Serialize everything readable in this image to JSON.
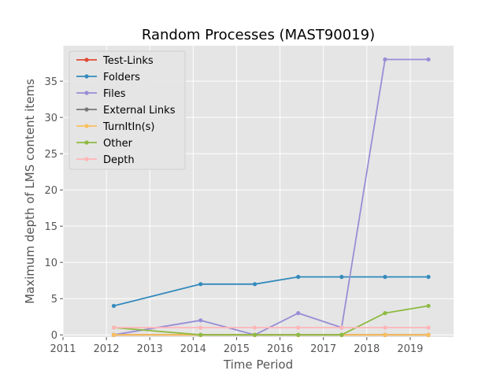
{
  "chart_data": {
    "type": "line",
    "title": "Random Processes (MAST90019)",
    "xlabel": "Time Period",
    "ylabel": "Maximum depth of LMS content items",
    "xlim": [
      2011.0,
      2020.0
    ],
    "ylim": [
      -0.3,
      39.9
    ],
    "x_ticks": [
      2011,
      2012,
      2013,
      2014,
      2015,
      2016,
      2017,
      2018,
      2019
    ],
    "y_ticks": [
      0,
      5,
      10,
      15,
      20,
      25,
      30,
      35
    ],
    "grid": true,
    "legend_position": "upper-left",
    "x": [
      2012.17,
      2014.17,
      2015.42,
      2016.42,
      2017.42,
      2018.42,
      2019.42
    ],
    "series": [
      {
        "name": "Test-Links",
        "color": "#e24a33",
        "values": [
          0,
          0,
          0,
          0,
          0,
          0,
          0
        ]
      },
      {
        "name": "Folders",
        "color": "#348abd",
        "values": [
          4,
          7,
          7,
          8,
          8,
          8,
          8
        ]
      },
      {
        "name": "Files",
        "color": "#988ed5",
        "values": [
          0,
          2,
          0,
          3,
          1,
          38,
          38
        ]
      },
      {
        "name": "External Links",
        "color": "#777777",
        "values": [
          0,
          0,
          0,
          0,
          0,
          0,
          0
        ]
      },
      {
        "name": "TurnItIn(s)",
        "color": "#fbc15e",
        "values": [
          0,
          0,
          0,
          0,
          0,
          0,
          0
        ]
      },
      {
        "name": "Other",
        "color": "#8eba42",
        "values": [
          1,
          0,
          0,
          0,
          0,
          3,
          4
        ]
      },
      {
        "name": "Depth",
        "color": "#ffb5b8",
        "values": [
          1,
          1,
          1,
          1,
          1,
          1,
          1
        ]
      }
    ]
  }
}
